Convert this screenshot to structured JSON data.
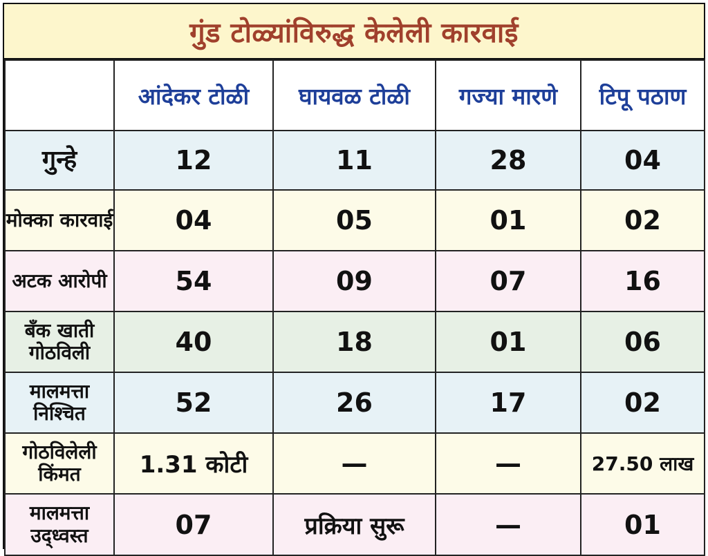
{
  "title": "गुंड टोळ्यांविरुद्ध केलेली कारवाई",
  "columns": [
    "आंदेकर टोळी",
    "घायवळ टोळी",
    "गज्या मारणे",
    "टिपू पठाण"
  ],
  "rows": [
    {
      "label": "गुन्हे",
      "values": [
        "12",
        "11",
        "28",
        "04"
      ]
    },
    {
      "label": "मोक्का कारवाई",
      "values": [
        "04",
        "05",
        "01",
        "02"
      ]
    },
    {
      "label": "अटक आरोपी",
      "values": [
        "54",
        "09",
        "07",
        "16"
      ]
    },
    {
      "label": "बँक खाती गोठविली",
      "values": [
        "40",
        "18",
        "01",
        "06"
      ]
    },
    {
      "label": "मालमत्ता निश्चित",
      "values": [
        "52",
        "26",
        "17",
        "02"
      ]
    },
    {
      "label": "गोठविलेली किंमत",
      "values": [
        "1.31 कोटी",
        "—",
        "—",
        "27.50 लाख"
      ]
    },
    {
      "label": "मालमत्ता उद्ध्वस्त",
      "values": [
        "07",
        "प्रक्रिया सुरू",
        "—",
        "01"
      ]
    }
  ],
  "colors": {
    "title_text": "#a0402c",
    "title_bg": "#fdf6cc",
    "header_text": "#1e3f99"
  }
}
